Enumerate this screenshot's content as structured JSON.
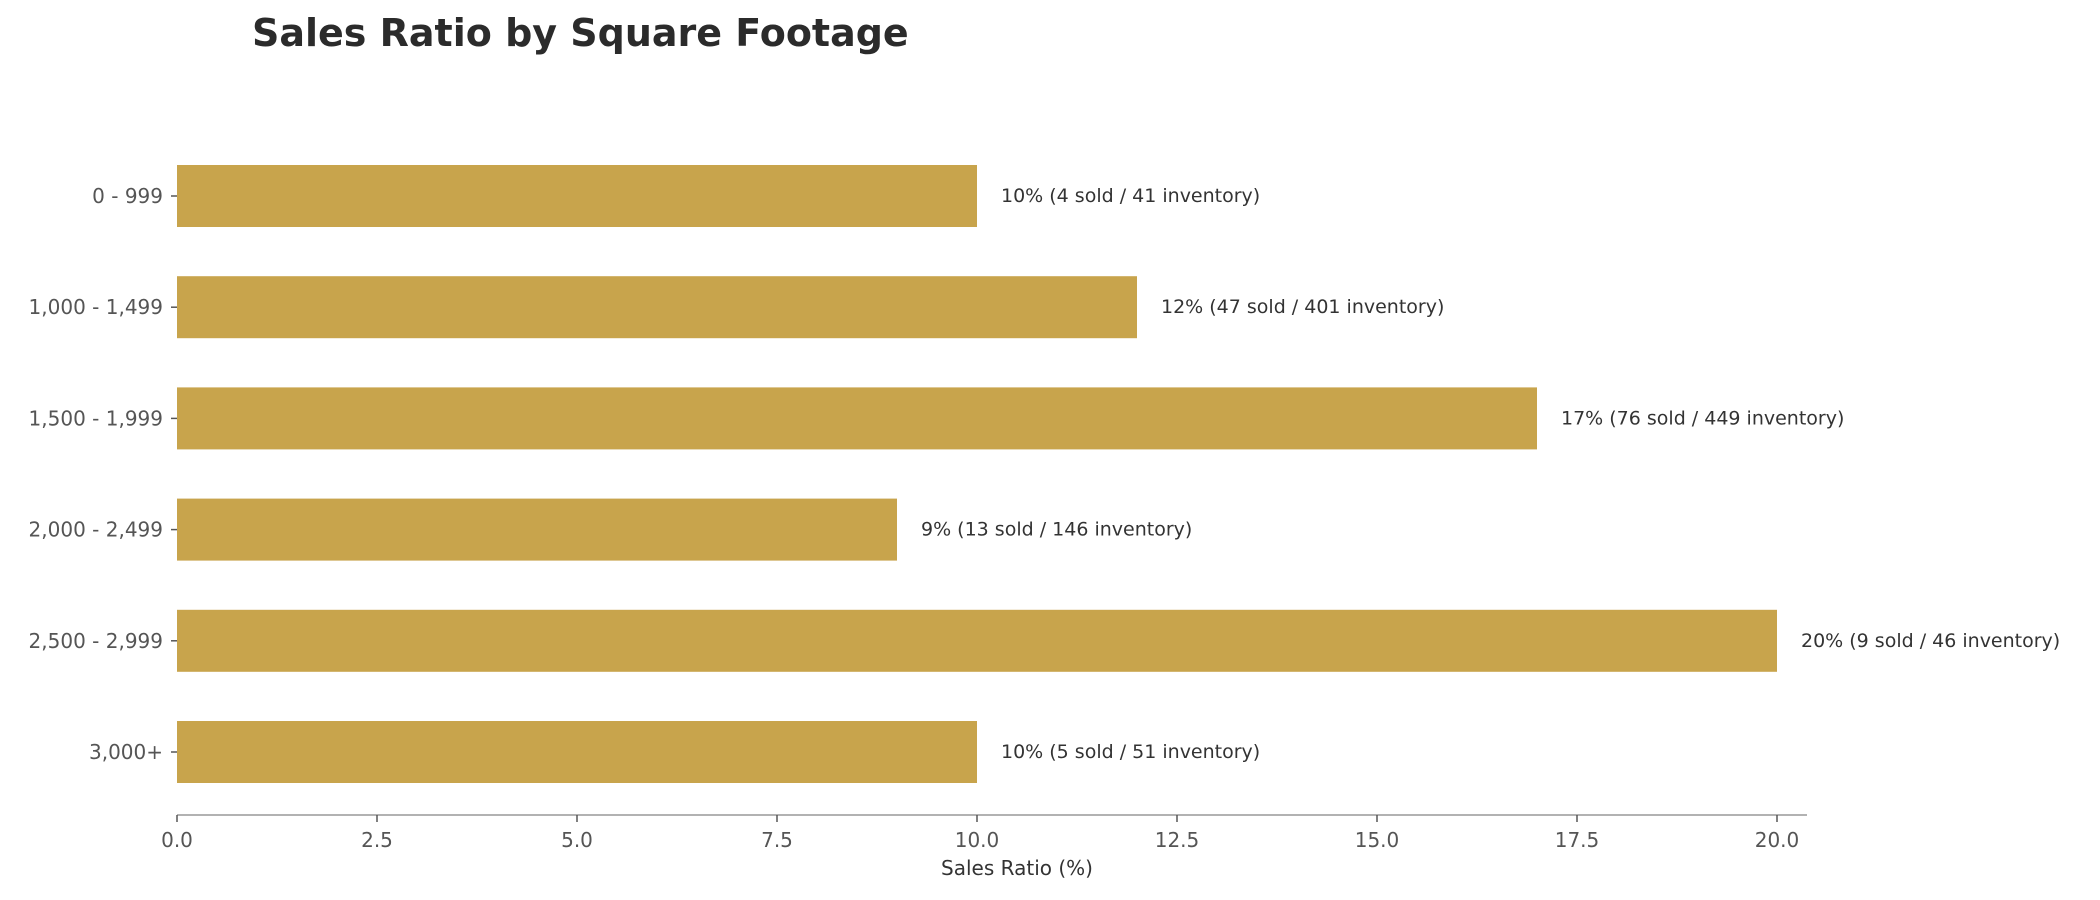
{
  "chart_data": {
    "type": "bar",
    "orientation": "horizontal",
    "title": "Sales Ratio by Square Footage",
    "xlabel": "Sales Ratio (%)",
    "ylabel": "",
    "xlim": [
      0,
      21
    ],
    "x_ticks": [
      0.0,
      2.5,
      5.0,
      7.5,
      10.0,
      12.5,
      15.0,
      17.5,
      20.0
    ],
    "x_tick_labels": [
      "0.0",
      "2.5",
      "5.0",
      "7.5",
      "10.0",
      "12.5",
      "15.0",
      "17.5",
      "20.0"
    ],
    "categories": [
      "0 - 999",
      "1,000 - 1,499",
      "1,500 - 1,999",
      "2,000 - 2,499",
      "2,500 - 2,999",
      "3,000+"
    ],
    "values": [
      10,
      12,
      17,
      9,
      20,
      10
    ],
    "data_labels": [
      "10%  (4 sold / 41 inventory)",
      "12%  (47 sold / 401 inventory)",
      "17%  (76 sold / 449 inventory)",
      "9%  (13 sold / 146 inventory)",
      "20%  (9 sold / 46 inventory)",
      "10%  (5 sold / 51 inventory)"
    ],
    "grid": false,
    "legend": "none",
    "colors": {
      "bar": "#C8A44C",
      "axis": "#999999",
      "title": "#2b2b2b"
    }
  }
}
